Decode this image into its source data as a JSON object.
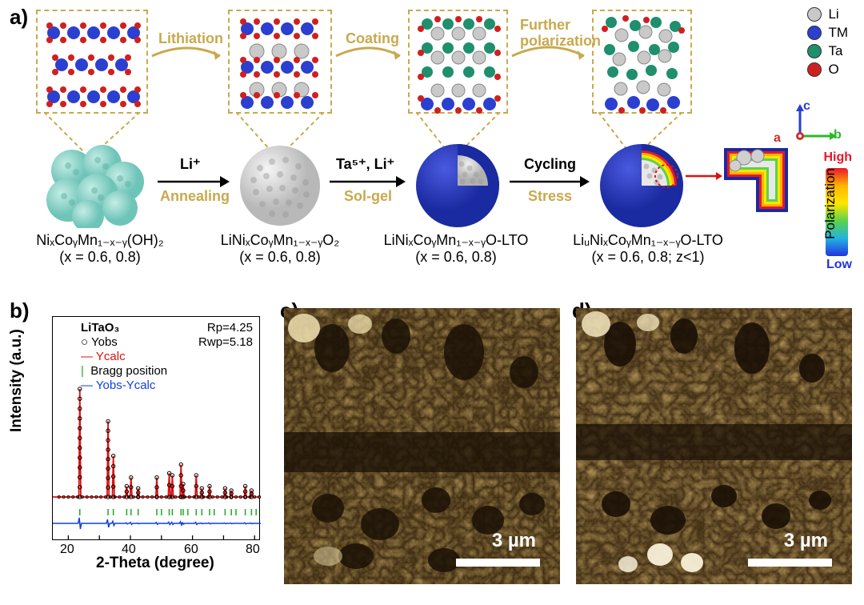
{
  "panel_labels": {
    "a": "a)",
    "b": "b)",
    "c": "c)",
    "d": "d)"
  },
  "panel_a": {
    "crystal_steps": [
      "Lithiation",
      "Coating",
      "Further\npolarization"
    ],
    "process_top": [
      "Li⁺",
      "Ta⁵⁺, Li⁺",
      "Cycling"
    ],
    "process_bot": [
      "Annealing",
      "Sol-gel",
      "Stress"
    ],
    "formulas": [
      {
        "main": "NiₓCoᵧMn₁₋ₓ₋ᵧ(OH)₂",
        "sub": "(x = 0.6, 0.8)"
      },
      {
        "main": "LiNiₓCoᵧMn₁₋ₓ₋ᵧO₂",
        "sub": "(x = 0.6, 0.8)"
      },
      {
        "main": "LiNiₓCoᵧMn₁₋ₓ₋ᵧO-LTO",
        "sub": "(x = 0.6, 0.8)"
      },
      {
        "main": "LiᵤNiₓCoᵧMn₁₋ₓ₋ᵧO-LTO",
        "sub": "(x = 0.6, 0.8; z<1)"
      }
    ],
    "legend": [
      {
        "color": "#c9c9c9",
        "label": "Li"
      },
      {
        "color": "#2b3fd1",
        "label": "TM"
      },
      {
        "color": "#1f8f6e",
        "label": "Ta"
      },
      {
        "color": "#d11f1f",
        "label": "O"
      }
    ],
    "axes": {
      "a": "a",
      "b": "b",
      "c": "c",
      "a_color": "#c93030",
      "b_color": "#2bb82b",
      "c_color": "#2b3fd1"
    },
    "colorbar": {
      "high": "High",
      "low": "Low",
      "axis": "Polarization",
      "gradient": [
        "#e8172a",
        "#ffb400",
        "#ffe600",
        "#5bd24c",
        "#22b3e0",
        "#2233e0"
      ]
    },
    "sphere_colors": {
      "precursor": "#8fd9d0",
      "lithiated": "#d0d0d0",
      "shell": "#2b3fd1"
    }
  },
  "panel_b": {
    "title": "LiTaO₃",
    "rp": "Rp=4.25",
    "rwp": "Rwp=5.18",
    "legend": [
      {
        "sym": "circle",
        "color": "#000000",
        "label": "Yobs"
      },
      {
        "sym": "line",
        "color": "#e01010",
        "label": "Ycalc"
      },
      {
        "sym": "tick",
        "color": "#1fa81f",
        "label": "Bragg position"
      },
      {
        "sym": "line",
        "color": "#1040e0",
        "label": "Yobs-Ycalc"
      }
    ],
    "x_label": "2-Theta (degree)",
    "y_label": "Intensity (a.u.)",
    "xlim": [
      15,
      82
    ],
    "xticks": [
      20,
      30,
      40,
      50,
      60,
      70,
      80
    ],
    "peaks_2theta": [
      23.7,
      32.8,
      34.5,
      38.8,
      40.2,
      42.5,
      48.5,
      52.5,
      53.5,
      56.3,
      57.0,
      61.2,
      63.0,
      65.5,
      70.5,
      72.5,
      77.0,
      79.0
    ],
    "peaks_rel_intensity": [
      100,
      70,
      38,
      10,
      18,
      8,
      18,
      22,
      20,
      30,
      12,
      20,
      8,
      10,
      8,
      6,
      10,
      6
    ],
    "bragg_ticks": [
      23.7,
      32.8,
      34.5,
      38.8,
      40.2,
      42.5,
      48.5,
      50.0,
      52.5,
      53.5,
      56.3,
      57.0,
      58.5,
      61.2,
      63.0,
      65.5,
      67.0,
      70.5,
      72.5,
      74.0,
      77.0,
      79.0,
      80.5
    ],
    "bg_color": "#ffffff",
    "border_color": "#000000",
    "line_colors": {
      "calc": "#e01010",
      "diff": "#1040e0",
      "bragg": "#1fa81f"
    }
  },
  "panel_c": {
    "scale": "3 µm",
    "bg": "#3a2a10"
  },
  "panel_d": {
    "scale": "3 µm",
    "bg": "#3a2a10"
  }
}
